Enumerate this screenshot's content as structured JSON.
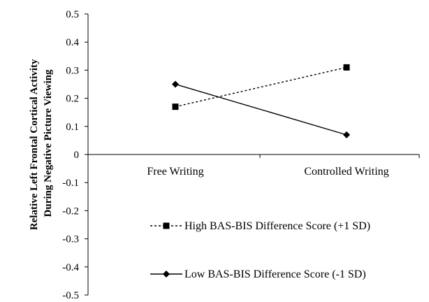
{
  "chart_data": {
    "type": "line",
    "categories": [
      "Free Writing",
      "Controlled Writing"
    ],
    "series": [
      {
        "name": "High BAS-BIS Difference Score (+1 SD)",
        "values": [
          0.17,
          0.31
        ],
        "line_style": "dashed",
        "marker": "square",
        "color": "#000000"
      },
      {
        "name": "Low BAS-BIS Difference Score (-1 SD)",
        "values": [
          0.25,
          0.07
        ],
        "line_style": "solid",
        "marker": "diamond",
        "color": "#000000"
      }
    ],
    "ylabel_lines": [
      "Relative Left Frontal Cortical Activity",
      "During Negative Picture Viewing"
    ],
    "ylim": [
      -0.5,
      0.5
    ],
    "yticks": [
      "0.5",
      "0.4",
      "0.3",
      "0.2",
      "0.1",
      "0",
      "-0.1",
      "-0.2",
      "-0.3",
      "-0.4",
      "-0.5"
    ],
    "grid": false,
    "legend_position": "bottom-right"
  }
}
